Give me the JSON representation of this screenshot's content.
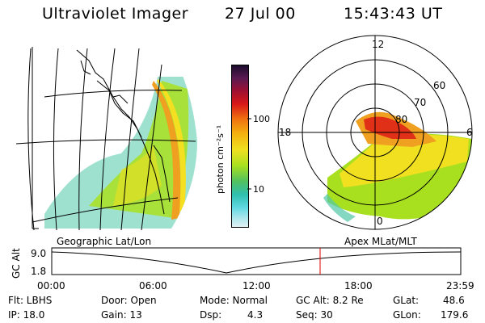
{
  "header": {
    "instrument": "Ultraviolet Imager",
    "date": "27 Jul 00",
    "time": "15:43:43 UT"
  },
  "colorbar": {
    "unit_label": "photon cm⁻²s⁻¹",
    "ticks": [
      "100",
      "10"
    ],
    "gradient": [
      "#1a0c2e",
      "#5a1a52",
      "#a01030",
      "#d81818",
      "#f07010",
      "#f4b010",
      "#f0e020",
      "#a8e020",
      "#50c060",
      "#30c0b0",
      "#60d8e0",
      "#a8e4ec",
      "#e0f0f4"
    ]
  },
  "panels": {
    "left_label": "Geographic Lat/Lon",
    "right_label": "Apex MLat/MLT"
  },
  "polar": {
    "mlt_labels": [
      "12",
      "18",
      "6",
      "0"
    ],
    "mlat_labels": [
      "60",
      "70",
      "80"
    ]
  },
  "timeline": {
    "axis_label": "GC Alt",
    "y_ticks": [
      "9.0",
      "1.8"
    ],
    "x_ticks": [
      "00:00",
      "06:00",
      "12:00",
      "18:00",
      "23:59"
    ],
    "current_marker_color": "#e00000",
    "current_time_fraction": 0.656
  },
  "status": {
    "flt": "Flt: LBHS",
    "ip": "IP: 18.0",
    "door": "Door: Open",
    "gain": "Gain: 13",
    "mode": "Mode: Normal",
    "dsp_label": "Dsp:",
    "dsp_value": "4.3",
    "gc_alt": "GC Alt: 8.2 Re",
    "seq": "Seq: 30",
    "glat_label": "GLat:",
    "glat_value": "48.6",
    "glon_label": "GLon:",
    "glon_value": "179.6"
  }
}
